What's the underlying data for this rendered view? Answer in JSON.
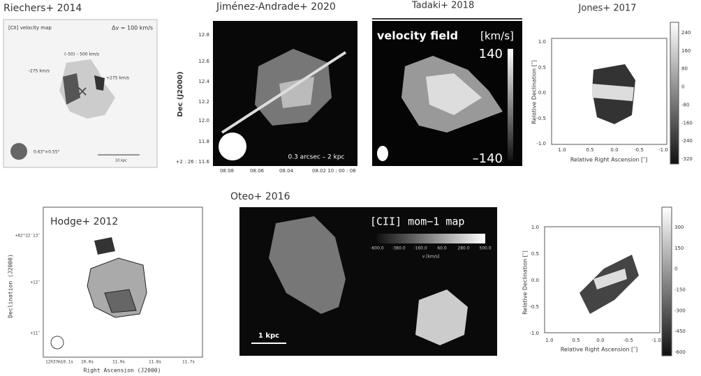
{
  "panels": [
    {
      "title": "Riechers+ 2014",
      "labels": [
        "[CII] velocity map",
        "Δv = 100 km/s",
        "(–50) – 500 km/s",
        "–275 km/s",
        "+275 km/s",
        "0.63\"×0.55\"",
        "10 kpc"
      ]
    },
    {
      "title": "Jiménez-Andrade+ 2020",
      "y_axis": "Dec (J2000)",
      "yticks": [
        "12.8",
        "12.6",
        "12.4",
        "12.2",
        "12.0",
        "11.8",
        "+2 : 26 : 11.6"
      ],
      "xticks": [
        "08.08",
        "08.06",
        "08.04",
        "08.02 10 : 00 : 08"
      ],
      "scale_bar": "0.3 arcsec – 2 kpc"
    },
    {
      "title": "Tadaki+ 2018",
      "label": "velocity field",
      "unit": "[km/s]",
      "colorbar": [
        "140",
        "–140"
      ]
    },
    {
      "title": "Jones+ 2017",
      "x_axis": "Relative Right Ascension [″]",
      "y_axis": "Relative Declination [″]",
      "xticks": [
        "1.0",
        "0.5",
        "0.0",
        "-0.5",
        "-1.0"
      ],
      "yticks": [
        "1.0",
        "0.5",
        "0.0",
        "-0.5",
        "-1.0"
      ],
      "colorbar": [
        "240",
        "160",
        "80",
        "0",
        "-80",
        "-160",
        "-240",
        "-320"
      ]
    },
    {
      "title": "Hodge+ 2012",
      "x_axis": "Right Ascension (J2000)",
      "y_axis": "Declination (J2000)",
      "yticks": [
        "+62°22′13″",
        "+12″",
        "+11″"
      ],
      "xticks": [
        "12h37m10.1s",
        "10.0s",
        "11.9s",
        "11.8s",
        "11.7s"
      ]
    },
    {
      "title": "Oteo+ 2016",
      "label": "[CII] mom−1 map",
      "colorbar": [
        "-600.0",
        "-380.0",
        "-160.0",
        "60.0",
        "280.0",
        "500.0"
      ],
      "unit": "v [km/s]",
      "scale_bar": "1 kpc"
    },
    {
      "x_axis": "Relative Right Ascension [″]",
      "y_axis": "Relative Declination [″]",
      "xticks": [
        "1.0",
        "0.5",
        "0.0",
        "-0.5",
        "-1.0"
      ],
      "yticks": [
        "1.0",
        "0.5",
        "0.0",
        "-0.5",
        "-1.0"
      ],
      "colorbar": [
        "300",
        "150",
        "0",
        "-150",
        "-300",
        "-450",
        "-600"
      ]
    }
  ]
}
